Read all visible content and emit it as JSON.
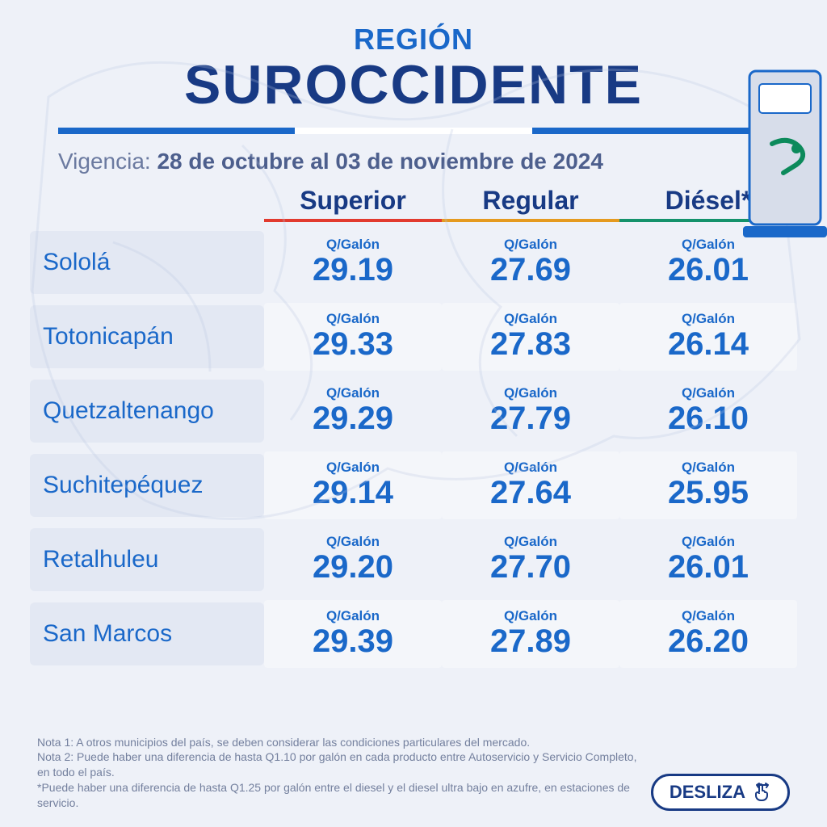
{
  "header": {
    "label": "REGIÓN",
    "name": "SUROCCIDENTE"
  },
  "vigencia": {
    "prefix": "Vigencia: ",
    "range": "28 de octubre al 03 de noviembre de 2024"
  },
  "columns": [
    {
      "label": "Superior",
      "underline_color": "#e23a2e"
    },
    {
      "label": "Regular",
      "underline_color": "#e59a1f"
    },
    {
      "label": "Diésel*",
      "underline_color": "#14926b"
    }
  ],
  "unit_label": "Q/Galón",
  "rows": [
    {
      "dept": "Sololá",
      "prices": [
        "29.19",
        "27.69",
        "26.01"
      ]
    },
    {
      "dept": "Totonicapán",
      "prices": [
        "29.33",
        "27.83",
        "26.14"
      ]
    },
    {
      "dept": "Quetzaltenango",
      "prices": [
        "29.29",
        "27.79",
        "26.10"
      ]
    },
    {
      "dept": "Suchitepéquez",
      "prices": [
        "29.14",
        "27.64",
        "25.95"
      ]
    },
    {
      "dept": "Retalhuleu",
      "prices": [
        "29.20",
        "27.70",
        "26.01"
      ]
    },
    {
      "dept": "San Marcos",
      "prices": [
        "29.39",
        "27.89",
        "26.20"
      ]
    }
  ],
  "notes": [
    "Nota 1: A otros municipios del país, se deben considerar las condiciones particulares del mercado.",
    "Nota 2: Puede haber una diferencia de hasta Q1.10 por galón en cada producto entre Autoservicio y Servicio Completo, en todo el país.",
    "*Puede haber una diferencia de hasta Q1.25 por galón entre el diesel y el diesel ultra bajo en azufre, en estaciones de servicio."
  ],
  "cta": {
    "label": "DESLIZA"
  },
  "colors": {
    "brand_dark": "#183a84",
    "brand_blue": "#1a68c9",
    "bg": "#eef1f8",
    "dept_bg": "#e3e8f3",
    "note_text": "#74809e"
  },
  "typography": {
    "region_label_fontsize": 36,
    "region_name_fontsize": 68,
    "col_head_fontsize": 32,
    "dept_fontsize": 30,
    "price_fontsize": 40,
    "unit_fontsize": 17,
    "note_fontsize": 14
  }
}
